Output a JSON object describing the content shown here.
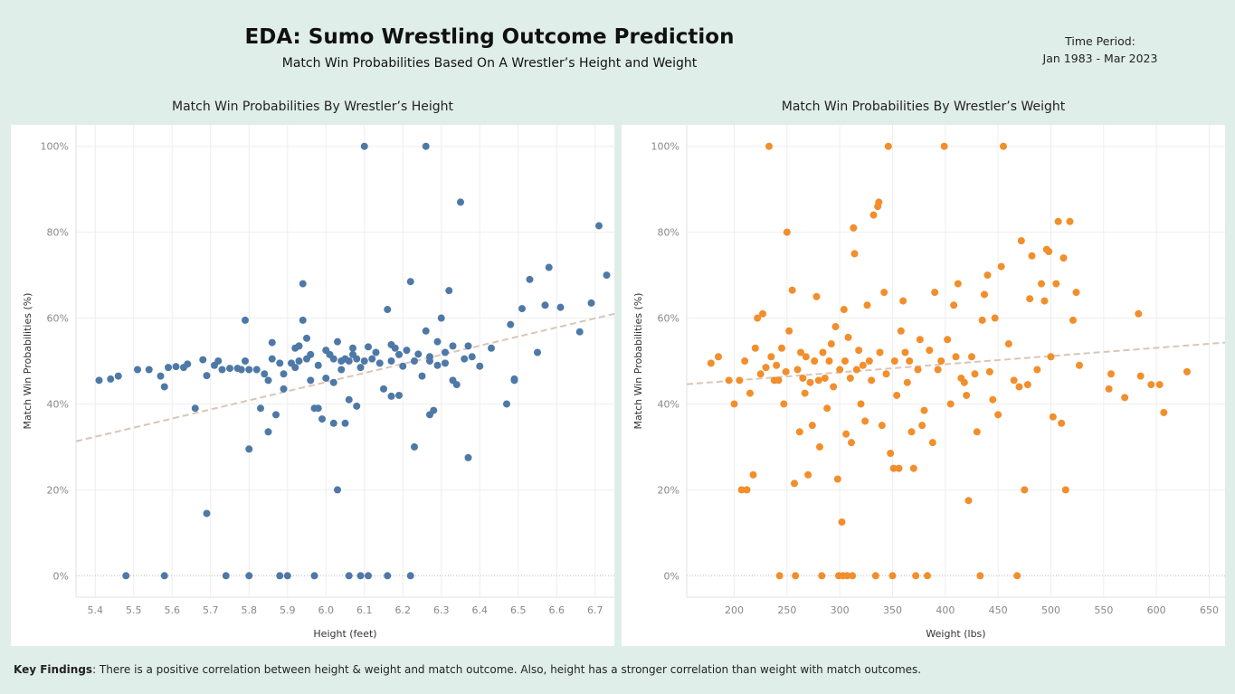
{
  "header": {
    "title": "EDA: Sumo Wrestling Outcome Prediction",
    "subtitle": "Match Win Probabilities Based On A Wrestler’s Height and Weight",
    "period_label": "Time Period:",
    "period_value": "Jan 1983 - Mar 2023"
  },
  "footer": {
    "label": "Key Findings",
    "text": ": There is a positive correlation between height & weight and match outcome. Also, height has a stronger correlation than weight with match outcomes."
  },
  "chart_data": [
    {
      "type": "scatter",
      "title": "Match Win Probabilities By Wrestler’s Height",
      "xlabel": "Height (feet)",
      "ylabel": "Match Win Probabilities (%)",
      "xlim": [
        5.35,
        6.75
      ],
      "ylim": [
        -0.05,
        1.05
      ],
      "x_ticks": [
        5.4,
        5.5,
        5.6,
        5.7,
        5.8,
        5.9,
        6.0,
        6.1,
        6.2,
        6.3,
        6.4,
        6.5,
        6.6,
        6.7
      ],
      "x_tick_labels": [
        "5.4",
        "5.5",
        "5.6",
        "5.7",
        "5.8",
        "5.9",
        "6.0",
        "6.1",
        "6.2",
        "6.3",
        "6.4",
        "6.5",
        "6.6",
        "6.7"
      ],
      "y_ticks": [
        0,
        0.2,
        0.4,
        0.6,
        0.8,
        1.0
      ],
      "y_tick_labels": [
        "0%",
        "20%",
        "40%",
        "60%",
        "80%",
        "100%"
      ],
      "color": "#4e79a7",
      "trend_color": "#d8c6b8",
      "trend_line": {
        "x": [
          5.35,
          6.75
        ],
        "y": [
          0.313,
          0.61
        ]
      },
      "points": [
        [
          5.41,
          0.455
        ],
        [
          5.44,
          0.458
        ],
        [
          5.46,
          0.465
        ],
        [
          5.48,
          0.0
        ],
        [
          5.51,
          0.48
        ],
        [
          5.54,
          0.48
        ],
        [
          5.57,
          0.465
        ],
        [
          5.58,
          0.44
        ],
        [
          5.58,
          0.0
        ],
        [
          5.59,
          0.485
        ],
        [
          5.61,
          0.487
        ],
        [
          5.63,
          0.485
        ],
        [
          5.64,
          0.493
        ],
        [
          5.66,
          0.39
        ],
        [
          5.68,
          0.503
        ],
        [
          5.69,
          0.466
        ],
        [
          5.69,
          0.145
        ],
        [
          5.71,
          0.49
        ],
        [
          5.72,
          0.5
        ],
        [
          5.73,
          0.48
        ],
        [
          5.74,
          0.0
        ],
        [
          5.75,
          0.483
        ],
        [
          5.77,
          0.483
        ],
        [
          5.78,
          0.48
        ],
        [
          5.79,
          0.5
        ],
        [
          5.79,
          0.595
        ],
        [
          5.8,
          0.48
        ],
        [
          5.8,
          0.295
        ],
        [
          5.8,
          0.0
        ],
        [
          5.82,
          0.48
        ],
        [
          5.83,
          0.39
        ],
        [
          5.84,
          0.47
        ],
        [
          5.85,
          0.455
        ],
        [
          5.85,
          0.335
        ],
        [
          5.86,
          0.505
        ],
        [
          5.86,
          0.543
        ],
        [
          5.87,
          0.375
        ],
        [
          5.88,
          0.495
        ],
        [
          5.88,
          0.0
        ],
        [
          5.89,
          0.435
        ],
        [
          5.89,
          0.47
        ],
        [
          5.9,
          0.0
        ],
        [
          5.91,
          0.495
        ],
        [
          5.92,
          0.53
        ],
        [
          5.92,
          0.485
        ],
        [
          5.93,
          0.535
        ],
        [
          5.93,
          0.5
        ],
        [
          5.94,
          0.595
        ],
        [
          5.94,
          0.68
        ],
        [
          5.95,
          0.505
        ],
        [
          5.95,
          0.553
        ],
        [
          5.96,
          0.515
        ],
        [
          5.96,
          0.455
        ],
        [
          5.97,
          0.39
        ],
        [
          5.97,
          0.0
        ],
        [
          5.98,
          0.49
        ],
        [
          5.98,
          0.39
        ],
        [
          5.99,
          0.365
        ],
        [
          6.0,
          0.46
        ],
        [
          6.0,
          0.525
        ],
        [
          6.01,
          0.515
        ],
        [
          6.02,
          0.505
        ],
        [
          6.02,
          0.355
        ],
        [
          6.02,
          0.45
        ],
        [
          6.03,
          0.545
        ],
        [
          6.03,
          0.2
        ],
        [
          6.04,
          0.5
        ],
        [
          6.04,
          0.48
        ],
        [
          6.05,
          0.355
        ],
        [
          6.05,
          0.505
        ],
        [
          6.06,
          0.0
        ],
        [
          6.06,
          0.5
        ],
        [
          6.06,
          0.41
        ],
        [
          6.07,
          0.515
        ],
        [
          6.07,
          0.53
        ],
        [
          6.08,
          0.395
        ],
        [
          6.08,
          0.505
        ],
        [
          6.09,
          0.0
        ],
        [
          6.09,
          0.485
        ],
        [
          6.1,
          0.5
        ],
        [
          6.1,
          1.0
        ],
        [
          6.11,
          0.533
        ],
        [
          6.11,
          0.0
        ],
        [
          6.12,
          0.505
        ],
        [
          6.13,
          0.52
        ],
        [
          6.14,
          0.495
        ],
        [
          6.15,
          0.435
        ],
        [
          6.16,
          0.62
        ],
        [
          6.16,
          0.0
        ],
        [
          6.17,
          0.5
        ],
        [
          6.17,
          0.538
        ],
        [
          6.17,
          0.418
        ],
        [
          6.18,
          0.53
        ],
        [
          6.19,
          0.515
        ],
        [
          6.19,
          0.42
        ],
        [
          6.2,
          0.488
        ],
        [
          6.21,
          0.525
        ],
        [
          6.22,
          0.685
        ],
        [
          6.22,
          0.0
        ],
        [
          6.23,
          0.5
        ],
        [
          6.23,
          0.3
        ],
        [
          6.24,
          0.516
        ],
        [
          6.25,
          0.465
        ],
        [
          6.26,
          0.57
        ],
        [
          6.26,
          1.0
        ],
        [
          6.27,
          0.51
        ],
        [
          6.27,
          0.5
        ],
        [
          6.27,
          0.375
        ],
        [
          6.28,
          0.385
        ],
        [
          6.29,
          0.545
        ],
        [
          6.29,
          0.49
        ],
        [
          6.3,
          0.6
        ],
        [
          6.31,
          0.52
        ],
        [
          6.31,
          0.495
        ],
        [
          6.32,
          0.664
        ],
        [
          6.33,
          0.535
        ],
        [
          6.33,
          0.455
        ],
        [
          6.34,
          0.445
        ],
        [
          6.35,
          0.87
        ],
        [
          6.36,
          0.505
        ],
        [
          6.37,
          0.535
        ],
        [
          6.37,
          0.275
        ],
        [
          6.38,
          0.51
        ],
        [
          6.4,
          0.488
        ],
        [
          6.43,
          0.53
        ],
        [
          6.47,
          0.4
        ],
        [
          6.48,
          0.585
        ],
        [
          6.49,
          0.458
        ],
        [
          6.49,
          0.455
        ],
        [
          6.51,
          0.622
        ],
        [
          6.53,
          0.69
        ],
        [
          6.55,
          0.52
        ],
        [
          6.57,
          0.63
        ],
        [
          6.58,
          0.718
        ],
        [
          6.61,
          0.625
        ],
        [
          6.66,
          0.568
        ],
        [
          6.69,
          0.635
        ],
        [
          6.71,
          0.815
        ],
        [
          6.73,
          0.7
        ]
      ]
    },
    {
      "type": "scatter",
      "title": "Match Win Probabilities By Wrestler’s Weight",
      "xlabel": "Weight (lbs)",
      "ylabel": "Match Win Probabilities (%)",
      "xlim": [
        155,
        665
      ],
      "ylim": [
        -0.05,
        1.05
      ],
      "x_ticks": [
        200,
        250,
        300,
        350,
        400,
        450,
        500,
        550,
        600,
        650
      ],
      "x_tick_labels": [
        "200",
        "250",
        "300",
        "350",
        "400",
        "450",
        "500",
        "550",
        "600",
        "650"
      ],
      "y_ticks": [
        0,
        0.2,
        0.4,
        0.6,
        0.8,
        1.0
      ],
      "y_tick_labels": [
        "0%",
        "20%",
        "40%",
        "60%",
        "80%",
        "100%"
      ],
      "color": "#f28e2b",
      "trend_color": "#d8c6b8",
      "trend_line": {
        "x": [
          155,
          665
        ],
        "y": [
          0.446,
          0.543
        ]
      },
      "points": [
        [
          178,
          0.495
        ],
        [
          185,
          0.51
        ],
        [
          195,
          0.455
        ],
        [
          200,
          0.4
        ],
        [
          205,
          0.455
        ],
        [
          207,
          0.2
        ],
        [
          210,
          0.5
        ],
        [
          212,
          0.2
        ],
        [
          215,
          0.425
        ],
        [
          218,
          0.235
        ],
        [
          220,
          0.53
        ],
        [
          222,
          0.6
        ],
        [
          225,
          0.47
        ],
        [
          227,
          0.61
        ],
        [
          230,
          0.485
        ],
        [
          233,
          1.0
        ],
        [
          235,
          0.51
        ],
        [
          238,
          0.455
        ],
        [
          240,
          0.49
        ],
        [
          242,
          0.455
        ],
        [
          243,
          0.0
        ],
        [
          245,
          0.53
        ],
        [
          247,
          0.4
        ],
        [
          249,
          0.475
        ],
        [
          250,
          0.8
        ],
        [
          252,
          0.57
        ],
        [
          255,
          0.665
        ],
        [
          257,
          0.215
        ],
        [
          258,
          0.0
        ],
        [
          260,
          0.48
        ],
        [
          262,
          0.335
        ],
        [
          263,
          0.52
        ],
        [
          265,
          0.46
        ],
        [
          267,
          0.425
        ],
        [
          268,
          0.51
        ],
        [
          270,
          0.235
        ],
        [
          272,
          0.45
        ],
        [
          274,
          0.35
        ],
        [
          276,
          0.5
        ],
        [
          278,
          0.65
        ],
        [
          280,
          0.455
        ],
        [
          281,
          0.3
        ],
        [
          283,
          0.0
        ],
        [
          284,
          0.52
        ],
        [
          286,
          0.46
        ],
        [
          288,
          0.39
        ],
        [
          290,
          0.5
        ],
        [
          292,
          0.54
        ],
        [
          294,
          0.44
        ],
        [
          296,
          0.58
        ],
        [
          298,
          0.225
        ],
        [
          299,
          0.0
        ],
        [
          300,
          0.48
        ],
        [
          302,
          0.125
        ],
        [
          303,
          0.0
        ],
        [
          304,
          0.62
        ],
        [
          305,
          0.5
        ],
        [
          306,
          0.33
        ],
        [
          307,
          0.0
        ],
        [
          308,
          0.555
        ],
        [
          310,
          0.46
        ],
        [
          311,
          0.31
        ],
        [
          312,
          0.0
        ],
        [
          313,
          0.81
        ],
        [
          314,
          0.75
        ],
        [
          316,
          0.48
        ],
        [
          318,
          0.525
        ],
        [
          320,
          0.4
        ],
        [
          322,
          0.49
        ],
        [
          324,
          0.36
        ],
        [
          326,
          0.63
        ],
        [
          328,
          0.5
        ],
        [
          330,
          0.455
        ],
        [
          332,
          0.84
        ],
        [
          334,
          0.0
        ],
        [
          336,
          0.86
        ],
        [
          337,
          0.87
        ],
        [
          338,
          0.52
        ],
        [
          340,
          0.35
        ],
        [
          342,
          0.66
        ],
        [
          344,
          0.47
        ],
        [
          346,
          1.0
        ],
        [
          348,
          0.285
        ],
        [
          350,
          0.0
        ],
        [
          351,
          0.25
        ],
        [
          352,
          0.5
        ],
        [
          354,
          0.42
        ],
        [
          356,
          0.25
        ],
        [
          358,
          0.57
        ],
        [
          360,
          0.64
        ],
        [
          362,
          0.52
        ],
        [
          364,
          0.45
        ],
        [
          366,
          0.5
        ],
        [
          368,
          0.335
        ],
        [
          370,
          0.25
        ],
        [
          372,
          0.0
        ],
        [
          374,
          0.48
        ],
        [
          376,
          0.55
        ],
        [
          378,
          0.35
        ],
        [
          380,
          0.385
        ],
        [
          383,
          0.0
        ],
        [
          385,
          0.525
        ],
        [
          388,
          0.31
        ],
        [
          390,
          0.66
        ],
        [
          393,
          0.48
        ],
        [
          396,
          0.5
        ],
        [
          399,
          1.0
        ],
        [
          402,
          0.55
        ],
        [
          405,
          0.4
        ],
        [
          408,
          0.63
        ],
        [
          410,
          0.51
        ],
        [
          412,
          0.68
        ],
        [
          415,
          0.46
        ],
        [
          418,
          0.45
        ],
        [
          420,
          0.42
        ],
        [
          422,
          0.175
        ],
        [
          425,
          0.51
        ],
        [
          428,
          0.47
        ],
        [
          430,
          0.335
        ],
        [
          433,
          0.0
        ],
        [
          435,
          0.595
        ],
        [
          437,
          0.655
        ],
        [
          440,
          0.7
        ],
        [
          442,
          0.475
        ],
        [
          445,
          0.41
        ],
        [
          447,
          0.6
        ],
        [
          450,
          0.375
        ],
        [
          453,
          0.72
        ],
        [
          455,
          1.0
        ],
        [
          460,
          0.54
        ],
        [
          465,
          0.455
        ],
        [
          468,
          0.0
        ],
        [
          470,
          0.44
        ],
        [
          472,
          0.78
        ],
        [
          475,
          0.2
        ],
        [
          478,
          0.445
        ],
        [
          480,
          0.645
        ],
        [
          482,
          0.745
        ],
        [
          487,
          0.48
        ],
        [
          491,
          0.68
        ],
        [
          494,
          0.64
        ],
        [
          496,
          0.76
        ],
        [
          498,
          0.755
        ],
        [
          500,
          0.51
        ],
        [
          502,
          0.37
        ],
        [
          505,
          0.68
        ],
        [
          507,
          0.825
        ],
        [
          510,
          0.355
        ],
        [
          512,
          0.74
        ],
        [
          514,
          0.2
        ],
        [
          518,
          0.825
        ],
        [
          521,
          0.595
        ],
        [
          524,
          0.66
        ],
        [
          527,
          0.49
        ],
        [
          555,
          0.435
        ],
        [
          557,
          0.47
        ],
        [
          570,
          0.415
        ],
        [
          583,
          0.61
        ],
        [
          585,
          0.465
        ],
        [
          595,
          0.445
        ],
        [
          603,
          0.445
        ],
        [
          607,
          0.38
        ],
        [
          629,
          0.475
        ]
      ]
    }
  ]
}
